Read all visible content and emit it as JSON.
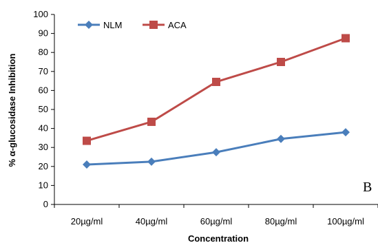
{
  "chart_data": {
    "type": "line",
    "categories": [
      "20µg/ml",
      "40µg/ml",
      "60µg/ml",
      "80µg/ml",
      "100µg/ml"
    ],
    "series": [
      {
        "name": "NLM",
        "values": [
          21,
          22.5,
          27.5,
          34.5,
          38
        ],
        "color": "#4A7EBB",
        "marker": "diamond"
      },
      {
        "name": "ACA",
        "values": [
          33.5,
          43.5,
          64.5,
          75,
          87.5
        ],
        "color": "#BE4B48",
        "marker": "square"
      }
    ],
    "xlabel": "Concentration",
    "ylabel": "% α-glucosidase Inhibition",
    "ylim": [
      0,
      100
    ],
    "yticks": [
      0,
      10,
      20,
      30,
      40,
      50,
      60,
      70,
      80,
      90,
      100
    ],
    "grid": false,
    "legend_position": "top-left",
    "panel_label": "B"
  }
}
